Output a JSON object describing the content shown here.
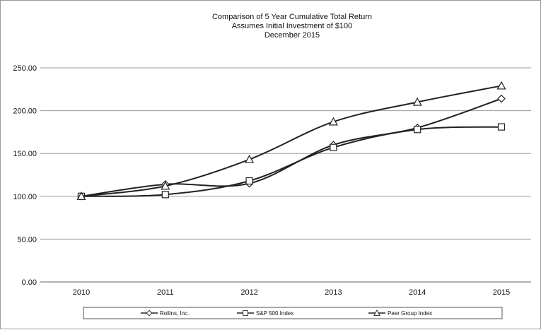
{
  "chart_data": {
    "type": "line",
    "title_lines": [
      "Comparison of 5 Year Cumulative Total Return",
      "Assumes Initial Investment of $100",
      "December 2015"
    ],
    "x": [
      "2010",
      "2011",
      "2012",
      "2013",
      "2014",
      "2015"
    ],
    "ylim": [
      0,
      250
    ],
    "yticks": [
      "0.00",
      "50.00",
      "100.00",
      "150.00",
      "200.00",
      "250.00"
    ],
    "grid": "horizontal",
    "legend_position": "bottom",
    "series": [
      {
        "name": "Rollins, Inc.",
        "marker": "diamond",
        "values": [
          100,
          114,
          115,
          160,
          180,
          214
        ]
      },
      {
        "name": "S&P 500 Index",
        "marker": "square",
        "values": [
          100,
          102,
          118,
          157,
          178,
          181
        ]
      },
      {
        "name": "Peer Group Index",
        "marker": "triangle",
        "values": [
          100,
          112,
          143,
          187,
          210,
          229
        ]
      }
    ]
  }
}
